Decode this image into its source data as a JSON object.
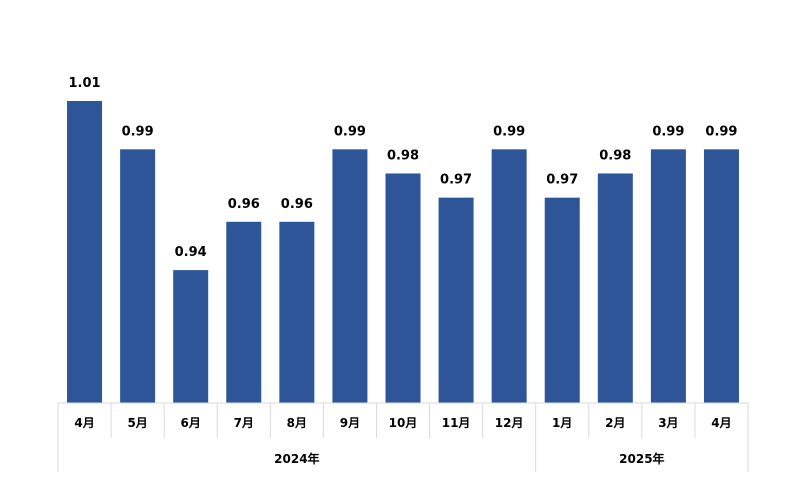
{
  "chart_data": {
    "type": "bar",
    "categories": [
      "4月",
      "5月",
      "6月",
      "7月",
      "8月",
      "9月",
      "10月",
      "11月",
      "12月",
      "1月",
      "2月",
      "3月",
      "4月"
    ],
    "groups": [
      {
        "label": "2024年",
        "count": 9
      },
      {
        "label": "2025年",
        "count": 4
      }
    ],
    "values": [
      1.01,
      0.99,
      0.94,
      0.96,
      0.96,
      0.99,
      0.98,
      0.97,
      0.99,
      0.97,
      0.98,
      0.99,
      0.99
    ],
    "data_labels": [
      "1.01",
      "0.99",
      "0.94",
      "0.96",
      "0.96",
      "0.99",
      "0.98",
      "0.97",
      "0.99",
      "0.97",
      "0.98",
      "0.99",
      "0.99"
    ],
    "ylim": [
      0.885,
      1.01
    ],
    "grid": false,
    "legend": "none",
    "bar_color": "#2E5597"
  }
}
